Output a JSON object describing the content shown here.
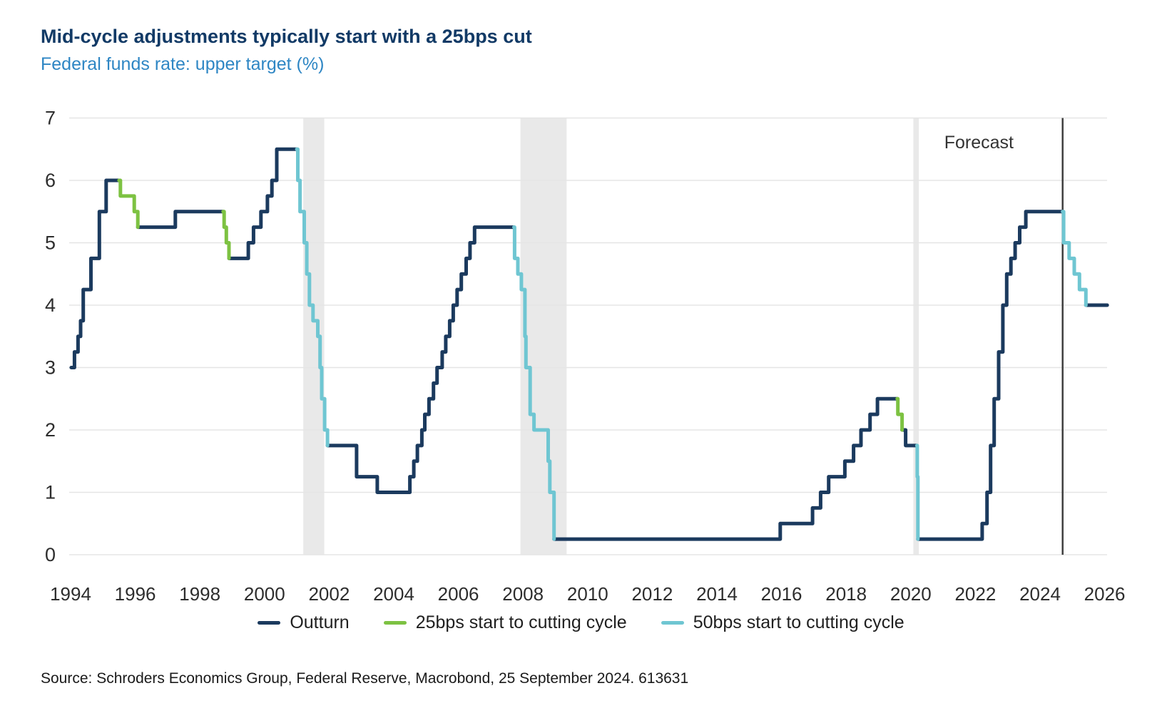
{
  "header": {
    "title": "Mid-cycle adjustments typically start with a 25bps cut",
    "subtitle": "Federal funds rate: upper target (%)"
  },
  "source_text": "Source: Schroders Economics Group, Federal Reserve, Macrobond, 25 September 2024. 613631",
  "chart_data": {
    "type": "line",
    "step": true,
    "title": "Mid-cycle adjustments typically start with a 25bps cut",
    "subtitle": "Federal funds rate: upper target (%)",
    "unit": "%",
    "xlim": [
      1993.85,
      2026.3
    ],
    "ylim": [
      0,
      7
    ],
    "x_ticks": [
      1994,
      1996,
      1998,
      2000,
      2002,
      2004,
      2006,
      2008,
      2010,
      2012,
      2014,
      2016,
      2018,
      2020,
      2022,
      2024,
      2026
    ],
    "y_ticks": [
      0,
      1,
      2,
      3,
      4,
      5,
      6,
      7
    ],
    "grid": "horizontal",
    "legend_position": "bottom",
    "forecast": {
      "label": "Forecast",
      "x": 2024.7
    },
    "recession_bands": [
      [
        2001.2,
        2001.85
      ],
      [
        2007.92,
        2009.35
      ],
      [
        2020.08,
        2020.25
      ]
    ],
    "colors": {
      "outturn": "#1b3a5e",
      "cut25": "#7dc242",
      "cut50": "#6fc6d2",
      "grid": "#e5e5e5",
      "band": "#e9e9e9",
      "forecast_line": "#3f3f3f",
      "axis_text": "#2d2d2d",
      "title": "#123a66",
      "subtitle": "#2e86c4"
    },
    "series": [
      {
        "name": "Outturn",
        "color": "#1b3a5e",
        "segments": [
          [
            [
              1994.02,
              3.0
            ],
            [
              1994.12,
              3.25
            ],
            [
              1994.23,
              3.5
            ],
            [
              1994.31,
              3.75
            ],
            [
              1994.39,
              4.25
            ],
            [
              1994.63,
              4.75
            ],
            [
              1994.89,
              5.5
            ],
            [
              1995.1,
              6.0
            ],
            [
              1995.5,
              6.0
            ]
          ],
          [
            [
              1996.08,
              5.25
            ],
            [
              1997.24,
              5.5
            ],
            [
              1998.72,
              5.5
            ]
          ],
          [
            [
              1998.9,
              4.75
            ],
            [
              1999.5,
              5.0
            ],
            [
              1999.66,
              5.25
            ],
            [
              1999.89,
              5.5
            ],
            [
              2000.09,
              5.75
            ],
            [
              2000.23,
              6.0
            ],
            [
              2000.38,
              6.5
            ],
            [
              2001.0,
              6.5
            ]
          ],
          [
            [
              2001.95,
              1.75
            ],
            [
              2002.85,
              1.25
            ],
            [
              2003.49,
              1.0
            ],
            [
              2004.5,
              1.25
            ],
            [
              2004.62,
              1.5
            ],
            [
              2004.73,
              1.75
            ],
            [
              2004.87,
              2.0
            ],
            [
              2004.96,
              2.25
            ],
            [
              2005.09,
              2.5
            ],
            [
              2005.23,
              2.75
            ],
            [
              2005.34,
              3.0
            ],
            [
              2005.5,
              3.25
            ],
            [
              2005.61,
              3.5
            ],
            [
              2005.73,
              3.75
            ],
            [
              2005.84,
              4.0
            ],
            [
              2005.96,
              4.25
            ],
            [
              2006.09,
              4.5
            ],
            [
              2006.24,
              4.75
            ],
            [
              2006.36,
              5.0
            ],
            [
              2006.5,
              5.25
            ],
            [
              2007.72,
              5.25
            ]
          ],
          [
            [
              2008.96,
              0.25
            ],
            [
              2015.96,
              0.5
            ],
            [
              2016.96,
              0.75
            ],
            [
              2017.21,
              1.0
            ],
            [
              2017.46,
              1.25
            ],
            [
              2017.96,
              1.5
            ],
            [
              2018.23,
              1.75
            ],
            [
              2018.46,
              2.0
            ],
            [
              2018.74,
              2.25
            ],
            [
              2018.97,
              2.5
            ],
            [
              2019.58,
              2.5
            ]
          ],
          [
            [
              2019.73,
              2.0
            ],
            [
              2019.84,
              1.75
            ],
            [
              2020.19,
              1.75
            ]
          ],
          [
            [
              2020.22,
              0.25
            ],
            [
              2022.21,
              0.5
            ],
            [
              2022.36,
              1.0
            ],
            [
              2022.47,
              1.75
            ],
            [
              2022.58,
              2.5
            ],
            [
              2022.72,
              3.25
            ],
            [
              2022.85,
              4.0
            ],
            [
              2022.97,
              4.5
            ],
            [
              2023.1,
              4.75
            ],
            [
              2023.23,
              5.0
            ],
            [
              2023.37,
              5.25
            ],
            [
              2023.56,
              5.5
            ],
            [
              2024.7,
              5.5
            ]
          ],
          [
            [
              2025.42,
              4.0
            ],
            [
              2026.08,
              4.0
            ]
          ]
        ]
      },
      {
        "name": "25bps start to cutting cycle",
        "color": "#7dc242",
        "segments": [
          [
            [
              1995.5,
              6.0
            ],
            [
              1995.54,
              5.75
            ],
            [
              1995.97,
              5.5
            ],
            [
              1996.08,
              5.25
            ]
          ],
          [
            [
              1998.72,
              5.5
            ],
            [
              1998.75,
              5.25
            ],
            [
              1998.82,
              5.0
            ],
            [
              1998.9,
              4.75
            ]
          ],
          [
            [
              2019.58,
              2.5
            ],
            [
              2019.6,
              2.25
            ],
            [
              2019.73,
              2.0
            ]
          ]
        ]
      },
      {
        "name": "50bps start to cutting cycle",
        "color": "#6fc6d2",
        "segments": [
          [
            [
              2001.0,
              6.5
            ],
            [
              2001.03,
              6.0
            ],
            [
              2001.1,
              5.5
            ],
            [
              2001.23,
              5.0
            ],
            [
              2001.31,
              4.5
            ],
            [
              2001.39,
              4.0
            ],
            [
              2001.5,
              3.75
            ],
            [
              2001.65,
              3.5
            ],
            [
              2001.72,
              3.0
            ],
            [
              2001.77,
              2.5
            ],
            [
              2001.86,
              2.0
            ],
            [
              2001.95,
              1.75
            ]
          ],
          [
            [
              2007.72,
              5.25
            ],
            [
              2007.74,
              4.75
            ],
            [
              2007.84,
              4.5
            ],
            [
              2007.95,
              4.25
            ],
            [
              2008.06,
              3.5
            ],
            [
              2008.09,
              3.0
            ],
            [
              2008.22,
              2.25
            ],
            [
              2008.34,
              2.0
            ],
            [
              2008.78,
              1.5
            ],
            [
              2008.83,
              1.0
            ],
            [
              2008.96,
              0.25
            ]
          ],
          [
            [
              2020.19,
              1.75
            ],
            [
              2020.2,
              1.25
            ],
            [
              2020.22,
              0.25
            ]
          ],
          [
            [
              2024.7,
              5.5
            ],
            [
              2024.73,
              5.0
            ],
            [
              2024.9,
              4.75
            ],
            [
              2025.06,
              4.5
            ],
            [
              2025.22,
              4.25
            ],
            [
              2025.42,
              4.0
            ]
          ]
        ]
      }
    ]
  }
}
